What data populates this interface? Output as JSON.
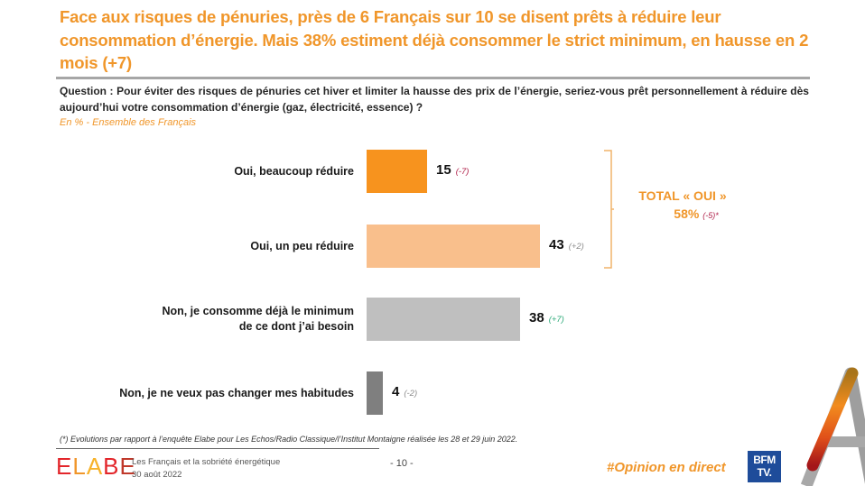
{
  "header": {
    "headline": "Face aux risques de pénuries, près de 6 Français sur 10 se disent prêts à réduire leur consommation d’énergie. Mais 38% estiment déjà consommer le strict minimum, en hausse en 2 mois (+7)",
    "question_label": "Question :",
    "question": "Pour éviter des risques de pénuries cet hiver et limiter la hausse des prix de l’énergie, seriez-vous prêt personnellement à réduire dès aujourd’hui votre consommation d’énergie (gaz, électricité, essence) ?",
    "base": "En % - Ensemble des Français"
  },
  "chart_data": {
    "type": "bar",
    "orientation": "horizontal",
    "title": "Pour éviter des risques de pénuries cet hiver et limiter la hausse des prix de l’énergie, seriez-vous prêt personnellement à réduire dès aujourd’hui votre consommation d’énergie (gaz, électricité, essence) ?",
    "unit": "%",
    "categories": [
      "Oui, beaucoup réduire",
      "Oui, un peu réduire",
      "Non, je consomme déjà le minimum de ce dont j’ai besoin",
      "Non, je ne veux pas changer mes habitudes"
    ],
    "category_lines": [
      [
        "Oui, beaucoup réduire"
      ],
      [
        "Oui, un peu réduire"
      ],
      [
        "Non, je consomme déjà le minimum",
        "de ce dont j’ai besoin"
      ],
      [
        "Non, je ne veux pas changer mes habitudes"
      ]
    ],
    "values": [
      15,
      43,
      38,
      4
    ],
    "value_labels": [
      "15",
      "43",
      "38",
      "4"
    ],
    "deltas": [
      "(-7)",
      "(+2)",
      "(+7)",
      "(-2)"
    ],
    "colors": [
      "#F7931E",
      "#F9BF8C",
      "#BFBFBF",
      "#7F7F7F"
    ],
    "delta_colors": [
      "#B0204A",
      "#8C8C8C",
      "#2EAA7A",
      "#8C8C8C"
    ],
    "xlim": [
      0,
      50
    ],
    "grid": false,
    "annotation": {
      "label": "TOTAL « OUI »",
      "value": "58%",
      "delta": "(-5)*",
      "groups": [
        "Oui, beaucoup réduire",
        "Oui, un peu réduire"
      ]
    }
  },
  "footer": {
    "footnote": "(*) Evolutions par rapport à l’enquête Elabe pour Les Echos/Radio Classique/l’Institut Montaigne réalisée les 28 et 29 juin 2022.",
    "logo": [
      "E",
      "L",
      "A",
      "B",
      "E"
    ],
    "logo_colors": [
      "#E3262B",
      "#F0962A",
      "#F7B32B",
      "#E3262B",
      "#C0392B"
    ],
    "study_title": "Les Français et la sobriété énergétique",
    "date": "30 août 2022",
    "page": "- 10 -",
    "hashtag": "#Opinion en direct",
    "broadcaster_line1": "BFM",
    "broadcaster_line2": "TV."
  }
}
